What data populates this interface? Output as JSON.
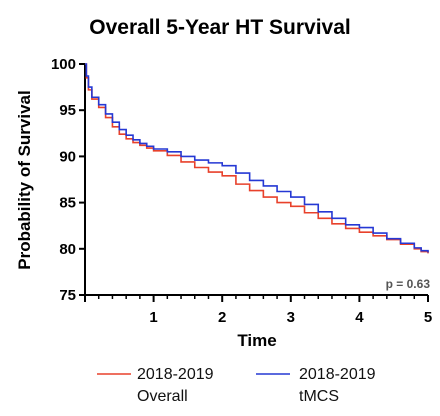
{
  "chart_data": {
    "type": "line",
    "title": "Overall 5-Year HT Survival",
    "xlabel": "Time",
    "ylabel": "Probability of Survival",
    "xlim": [
      0,
      5
    ],
    "ylim": [
      75,
      100
    ],
    "xticks": [
      1,
      2,
      3,
      4,
      5
    ],
    "yticks": [
      75,
      80,
      85,
      90,
      95,
      100
    ],
    "annotation": "p = 0.63",
    "grid": false,
    "legend_position": "bottom",
    "series": [
      {
        "name": "2018-2019 Overall",
        "color": "#e8412b",
        "x": [
          0,
          0.02,
          0.05,
          0.1,
          0.2,
          0.3,
          0.4,
          0.5,
          0.6,
          0.7,
          0.8,
          0.9,
          1.0,
          1.2,
          1.4,
          1.6,
          1.8,
          2.0,
          2.2,
          2.4,
          2.6,
          2.8,
          3.0,
          3.2,
          3.4,
          3.6,
          3.8,
          4.0,
          4.2,
          4.4,
          4.6,
          4.8,
          4.9,
          5.0
        ],
        "y": [
          100,
          98.5,
          97.2,
          96.2,
          95.3,
          94.2,
          93.2,
          92.4,
          91.9,
          91.5,
          91.2,
          90.9,
          90.6,
          90.1,
          89.4,
          88.8,
          88.3,
          87.9,
          87.0,
          86.3,
          85.6,
          85.0,
          84.6,
          83.9,
          83.3,
          82.7,
          82.2,
          81.8,
          81.4,
          81.0,
          80.5,
          80.0,
          79.7,
          79.5
        ]
      },
      {
        "name": "2018-2019 tMCS",
        "color": "#2538d4",
        "x": [
          0,
          0.02,
          0.05,
          0.1,
          0.2,
          0.3,
          0.4,
          0.5,
          0.6,
          0.7,
          0.8,
          0.9,
          1.0,
          1.2,
          1.4,
          1.6,
          1.8,
          2.0,
          2.2,
          2.4,
          2.6,
          2.8,
          3.0,
          3.2,
          3.4,
          3.6,
          3.8,
          4.0,
          4.2,
          4.4,
          4.6,
          4.8,
          4.9,
          5.0
        ],
        "y": [
          100,
          98.7,
          97.5,
          96.4,
          95.6,
          94.6,
          93.7,
          92.9,
          92.3,
          91.8,
          91.4,
          91.1,
          90.8,
          90.5,
          90.0,
          89.6,
          89.3,
          89.0,
          88.2,
          87.4,
          86.8,
          86.2,
          85.6,
          84.8,
          84.0,
          83.3,
          82.6,
          82.3,
          81.7,
          81.1,
          80.6,
          80.1,
          79.8,
          79.6
        ]
      }
    ]
  },
  "legend": {
    "items": [
      {
        "line1": "2018-2019",
        "line2": "Overall"
      },
      {
        "line1": "2018-2019",
        "line2": "tMCS"
      }
    ]
  }
}
